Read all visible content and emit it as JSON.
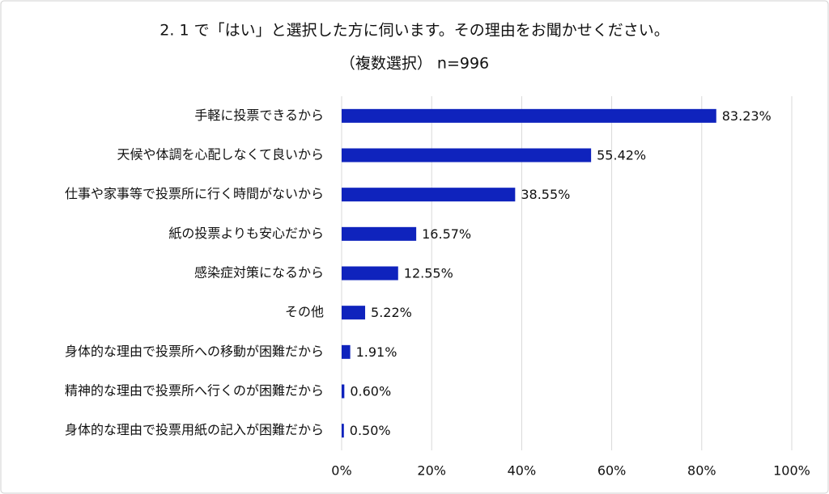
{
  "chart_data": {
    "type": "bar",
    "title": "2. 1 で「はい」と選択した方に伺います。その理由をお聞かせください。",
    "subtitle": "（複数選択） n=996",
    "categories": [
      "手軽に投票できるから",
      "天候や体調を心配しなくて良いから",
      "仕事や家事等で投票所に行く時間がないから",
      "紙の投票よりも安心だから",
      "感染症対策になるから",
      "その他",
      "身体的な理由で投票所への移動が困難だから",
      "精神的な理由で投票所へ行くのが困難だから",
      "身体的な理由で投票用紙の記入が困難だから"
    ],
    "values": [
      83.23,
      55.42,
      38.55,
      16.57,
      12.55,
      5.22,
      1.91,
      0.6,
      0.5
    ],
    "value_labels": [
      "83.23%",
      "55.42%",
      "38.55%",
      "16.57%",
      "12.55%",
      "5.22%",
      "1.91%",
      "0.60%",
      "0.50%"
    ],
    "color": "#0f23bd",
    "xlim": [
      0,
      100
    ],
    "xticks": [
      {
        "value": 0,
        "label": "0%"
      },
      {
        "value": 20,
        "label": "20%"
      },
      {
        "value": 40,
        "label": "40%"
      },
      {
        "value": 60,
        "label": "60%"
      },
      {
        "value": 80,
        "label": "80%"
      },
      {
        "value": 100,
        "label": "100%"
      }
    ],
    "grid": true
  }
}
